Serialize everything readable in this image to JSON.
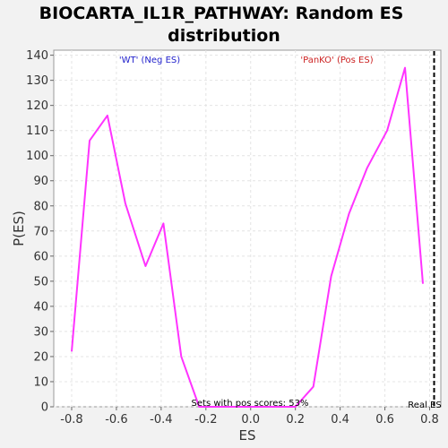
{
  "chart_data": {
    "type": "line",
    "title": "BIOCARTA_IL1R_PATHWAY: Random ES distribution",
    "title_lines": [
      "BIOCARTA_IL1R_PATHWAY: Random ES",
      "distribution"
    ],
    "xlabel": "ES",
    "ylabel": "P(ES)",
    "xlim": [
      -0.88,
      0.85
    ],
    "ylim": [
      0,
      142
    ],
    "x_ticks": [
      "-0.8",
      "-0.6",
      "-0.4",
      "-0.2",
      "0.0",
      "0.2",
      "0.4",
      "0.6",
      "0.8"
    ],
    "x_tick_values": [
      -0.8,
      -0.6,
      -0.4,
      -0.2,
      0.0,
      0.2,
      0.4,
      0.6,
      0.8
    ],
    "y_ticks": [
      "0",
      "10",
      "20",
      "30",
      "40",
      "50",
      "60",
      "70",
      "80",
      "90",
      "100",
      "110",
      "120",
      "130",
      "140"
    ],
    "y_tick_values": [
      0,
      10,
      20,
      30,
      40,
      50,
      60,
      70,
      80,
      90,
      100,
      110,
      120,
      130,
      140
    ],
    "grid": true,
    "series": [
      {
        "color": "#ff33ff",
        "x": [
          -0.8,
          -0.72,
          -0.64,
          -0.56,
          -0.47,
          -0.39,
          -0.31,
          -0.23,
          -0.15,
          -0.06,
          0.03,
          0.12,
          0.2,
          0.28,
          0.36,
          0.44,
          0.52,
          0.61,
          0.69,
          0.77
        ],
        "y": [
          22,
          106,
          116,
          81,
          56,
          73,
          20,
          0,
          0,
          0,
          0,
          0,
          0,
          8,
          52,
          77,
          95,
          110,
          135,
          49
        ]
      }
    ],
    "annotations": {
      "neg_label": "'WT' (Neg ES)",
      "neg_color": "#2222cc",
      "pos_label": "'PanKO' (Pos ES)",
      "pos_color": "#cc2222",
      "pos_scores": "Sets with pos scores: 53%",
      "real_es_label": "Real ES",
      "real_es_value": 0.82
    }
  }
}
